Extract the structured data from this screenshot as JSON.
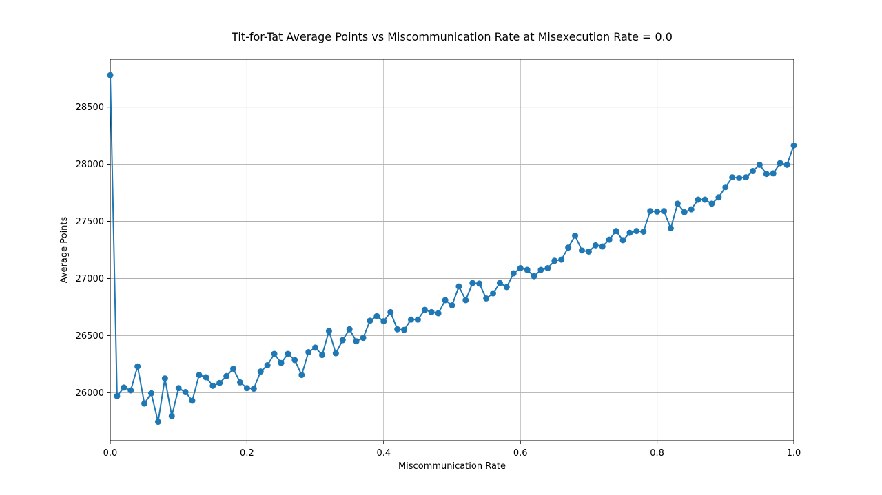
{
  "chart_data": {
    "type": "line",
    "title": "Tit-for-Tat Average Points vs Miscommunication Rate at Misexecution Rate = 0.0",
    "xlabel": "Miscommunication Rate",
    "ylabel": "Average Points",
    "xlim": [
      0.0,
      1.0
    ],
    "ylim": [
      25580,
      28920
    ],
    "x_ticks": [
      0.0,
      0.2,
      0.4,
      0.6,
      0.8,
      1.0
    ],
    "x_tick_labels": [
      "0.0",
      "0.2",
      "0.4",
      "0.6",
      "0.8",
      "1.0"
    ],
    "y_ticks": [
      26000,
      26500,
      27000,
      27500,
      28000,
      28500
    ],
    "y_tick_labels": [
      "26000",
      "26500",
      "27000",
      "27500",
      "28000",
      "28500"
    ],
    "grid": true,
    "color": "#1f77b4",
    "marker": "circle",
    "series": [
      {
        "x": [
          0.0,
          0.01,
          0.02,
          0.03,
          0.04,
          0.05,
          0.06,
          0.07,
          0.08,
          0.09,
          0.1,
          0.11,
          0.12,
          0.13,
          0.14,
          0.15,
          0.16,
          0.17,
          0.18,
          0.19,
          0.2,
          0.21,
          0.22,
          0.23,
          0.24,
          0.25,
          0.26,
          0.27,
          0.28,
          0.29,
          0.3,
          0.31,
          0.32,
          0.33,
          0.34,
          0.35,
          0.36,
          0.37,
          0.38,
          0.39,
          0.4,
          0.41,
          0.42,
          0.43,
          0.44,
          0.45,
          0.46,
          0.47,
          0.48,
          0.49,
          0.5,
          0.51,
          0.52,
          0.53,
          0.54,
          0.55,
          0.56,
          0.57,
          0.58,
          0.59,
          0.6,
          0.61,
          0.62,
          0.63,
          0.64,
          0.65,
          0.66,
          0.67,
          0.68,
          0.69,
          0.7,
          0.71,
          0.72,
          0.73,
          0.74,
          0.75,
          0.76,
          0.77,
          0.78,
          0.79,
          0.8,
          0.81,
          0.82,
          0.83,
          0.84,
          0.85,
          0.86,
          0.87,
          0.88,
          0.89,
          0.9,
          0.91,
          0.92,
          0.93,
          0.94,
          0.95,
          0.96,
          0.97,
          0.98,
          0.99,
          1.0
        ],
        "y": [
          28780,
          25970,
          26045,
          26020,
          26230,
          25905,
          25995,
          25745,
          26125,
          25795,
          26040,
          26005,
          25930,
          26155,
          26135,
          26060,
          26085,
          26145,
          26210,
          26090,
          26040,
          26035,
          26185,
          26240,
          26340,
          26260,
          26340,
          26285,
          26155,
          26355,
          26395,
          26330,
          26540,
          26345,
          26460,
          26555,
          26450,
          26480,
          26630,
          26670,
          26625,
          26705,
          26555,
          26550,
          26640,
          26640,
          26725,
          26705,
          26695,
          26810,
          26765,
          26930,
          26810,
          26960,
          26955,
          26825,
          26870,
          26960,
          26925,
          27045,
          27090,
          27075,
          27020,
          27075,
          27090,
          27155,
          27165,
          27270,
          27375,
          27245,
          27235,
          27290,
          27280,
          27340,
          27415,
          27335,
          27400,
          27415,
          27410,
          27590,
          27585,
          27590,
          27440,
          27655,
          27580,
          27605,
          27690,
          27690,
          27655,
          27710,
          27800,
          27885,
          27880,
          27885,
          27940,
          27995,
          27915,
          27920,
          28010,
          27995,
          28165
        ]
      }
    ]
  }
}
